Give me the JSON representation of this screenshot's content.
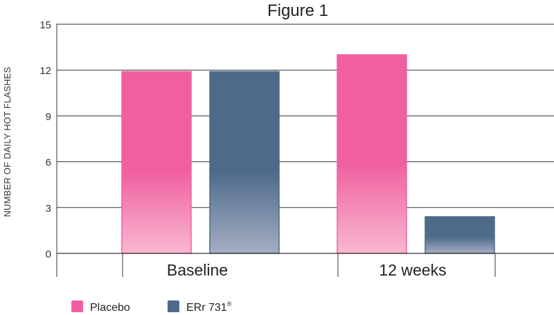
{
  "chart_data": {
    "type": "bar",
    "title": "Figure 1",
    "ylabel": "NUMBER OF DAILY HOT FLASHES",
    "xlabel": "",
    "categories": [
      "Baseline",
      "12 weeks"
    ],
    "series": [
      {
        "name": "Placebo",
        "values": [
          11.9,
          13.0
        ],
        "color": "#f060a0",
        "color_light": "#f8b8d0"
      },
      {
        "name": "ERr 731",
        "values": [
          11.9,
          2.4
        ],
        "color": "#4e6a8a",
        "color_light": "#a4aec2"
      }
    ],
    "ylim": [
      0,
      15
    ],
    "yticks": [
      "0",
      "3",
      "6",
      "9",
      "12",
      "15"
    ],
    "grid": true,
    "legend": {
      "placement": "bottom-left",
      "ERr_suffix": "®"
    }
  }
}
